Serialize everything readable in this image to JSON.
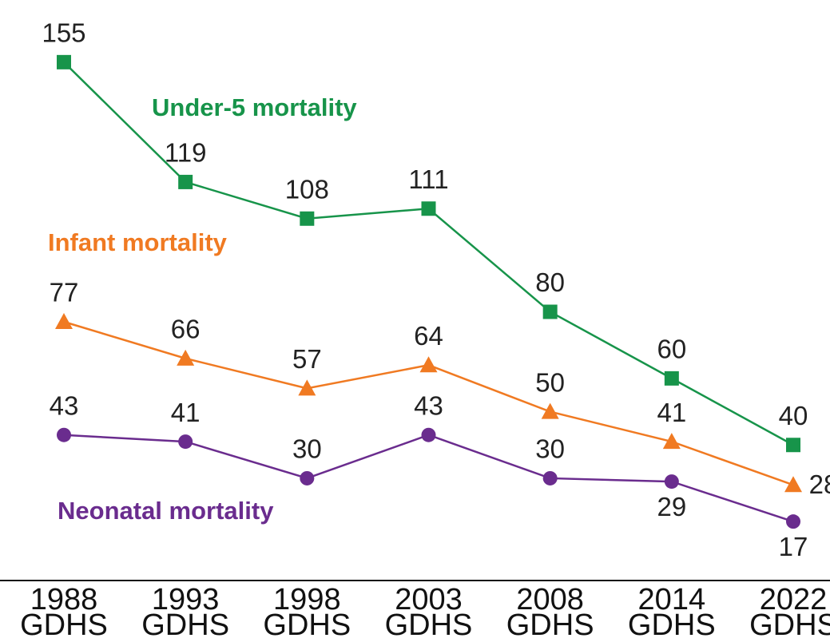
{
  "chart_data": {
    "type": "line",
    "categories": [
      "1988 GDHS",
      "1993 GDHS",
      "1998 GDHS",
      "2003 GDHS",
      "2008 GDHS",
      "2014 GDHS",
      "2022 GDHS"
    ],
    "series": [
      {
        "name": "Under-5 mortality",
        "color": "#17944a",
        "marker": "square",
        "values": [
          155,
          119,
          108,
          111,
          80,
          60,
          40
        ]
      },
      {
        "name": "Infant mortality",
        "color": "#f07a22",
        "marker": "triangle",
        "values": [
          77,
          66,
          57,
          64,
          50,
          41,
          28
        ]
      },
      {
        "name": "Neonatal mortality",
        "color": "#6a2c8e",
        "marker": "circle",
        "values": [
          43,
          41,
          30,
          43,
          30,
          29,
          17
        ]
      }
    ],
    "ylim": [
      0,
      160
    ]
  }
}
